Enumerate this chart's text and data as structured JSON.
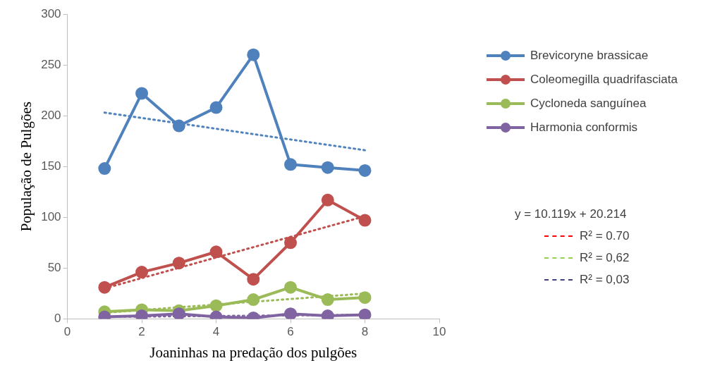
{
  "chart_data": {
    "type": "line",
    "xlabel": "Joaninhas na predação dos pulgões",
    "ylabel": "População de Pulgões",
    "x": [
      1,
      2,
      3,
      4,
      5,
      6,
      7,
      8
    ],
    "xlim": [
      0,
      10
    ],
    "xticks": [
      0,
      2,
      4,
      6,
      8,
      10
    ],
    "ylim": [
      0,
      300
    ],
    "yticks": [
      0,
      50,
      100,
      150,
      200,
      250,
      300
    ],
    "grid": false,
    "legend": "right",
    "marker": "circle",
    "line_style": "solid",
    "series": [
      {
        "name": "Brevicoryne brassicae",
        "color": "#4f81bd",
        "values": [
          148,
          222,
          190,
          208,
          260,
          152,
          149,
          146
        ]
      },
      {
        "name": "Coleomegilla quadrifasciata",
        "color": "#c0504d",
        "values": [
          31,
          46,
          55,
          66,
          39,
          75,
          117,
          97
        ]
      },
      {
        "name": "Cycloneda sanguínea",
        "color": "#9bbb59",
        "values": [
          7,
          9,
          8,
          13,
          19,
          31,
          19,
          21
        ]
      },
      {
        "name": "Harmonia conformis",
        "color": "#8064a2",
        "values": [
          2,
          3,
          5,
          2,
          1,
          5,
          3,
          4
        ]
      },
      {
        "type": "line",
        "color": "#4f81bd",
        "values": [
          203,
          null,
          null,
          null,
          null,
          null,
          null,
          166
        ],
        "line_style": "dotted",
        "marker": "none"
      },
      {
        "type": "line",
        "color": "#c0504d",
        "values": [
          30,
          null,
          null,
          null,
          null,
          null,
          null,
          101
        ],
        "line_style": "dotted",
        "marker": "none"
      },
      {
        "type": "line",
        "color": "#9bbb59",
        "values": [
          6,
          null,
          null,
          null,
          null,
          null,
          null,
          25
        ],
        "line_style": "dotted",
        "marker": "none"
      },
      {
        "type": "line",
        "color": "#8064a2",
        "values": [
          2,
          null,
          null,
          null,
          null,
          null,
          null,
          4
        ],
        "line_style": "dotted",
        "marker": "none"
      }
    ],
    "annotations": [
      "y = 10.119x + 20.214",
      "R² = 0.70",
      "R² = 0,62",
      "R² = 0,03"
    ]
  }
}
